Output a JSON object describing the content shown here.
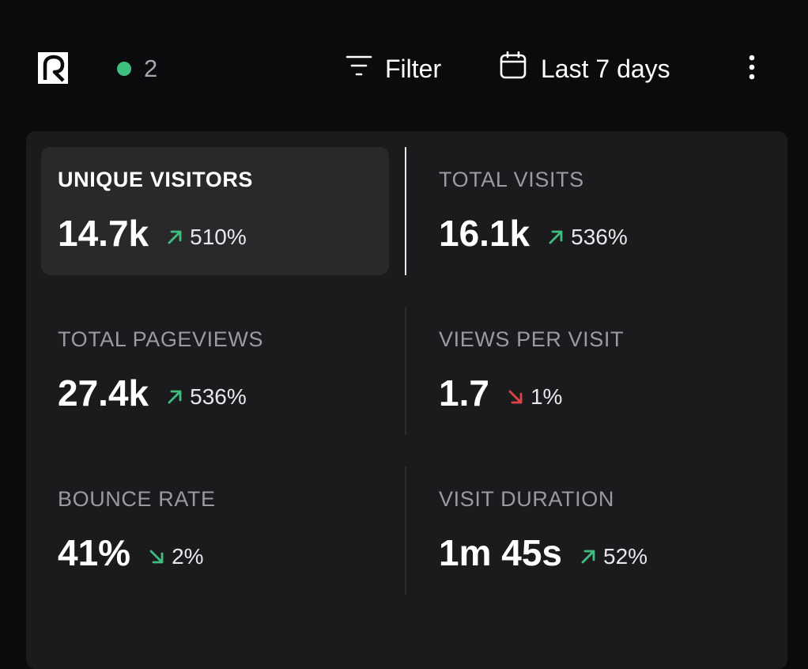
{
  "header": {
    "live_count": "2",
    "filter_label": "Filter",
    "range_label": "Last 7 days"
  },
  "colors": {
    "up": "#3fbf7f",
    "down_bad": "#e04545",
    "live": "#3fbf7f"
  },
  "stats": [
    {
      "label": "UNIQUE VISITORS",
      "value": "14.7k",
      "change": "510%",
      "direction": "up",
      "sentiment": "good",
      "selected": true
    },
    {
      "label": "TOTAL VISITS",
      "value": "16.1k",
      "change": "536%",
      "direction": "up",
      "sentiment": "good",
      "selected": false
    },
    {
      "label": "TOTAL PAGEVIEWS",
      "value": "27.4k",
      "change": "536%",
      "direction": "up",
      "sentiment": "good",
      "selected": false
    },
    {
      "label": "VIEWS PER VISIT",
      "value": "1.7",
      "change": "1%",
      "direction": "down",
      "sentiment": "bad",
      "selected": false
    },
    {
      "label": "BOUNCE RATE",
      "value": "41%",
      "change": "2%",
      "direction": "down",
      "sentiment": "good",
      "selected": false
    },
    {
      "label": "VISIT DURATION",
      "value": "1m 45s",
      "change": "52%",
      "direction": "up",
      "sentiment": "good",
      "selected": false
    }
  ]
}
